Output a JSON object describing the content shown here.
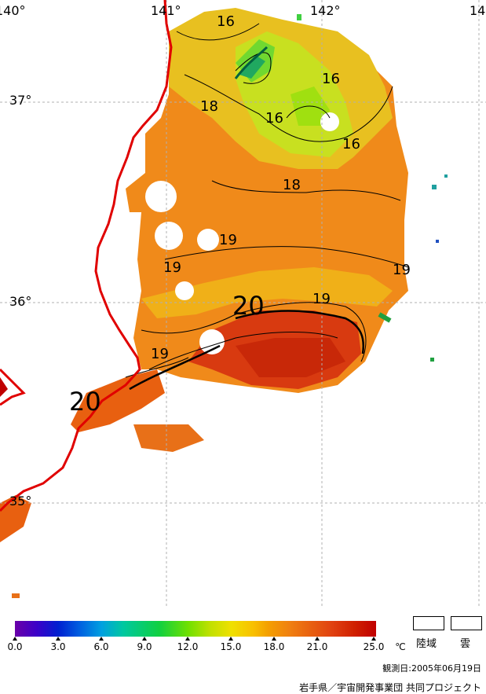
{
  "map": {
    "lon_labels": [
      "140°",
      "141°",
      "142°",
      "14"
    ],
    "lat_labels": [
      "37°",
      "36°",
      "35°"
    ],
    "contour_labels": [
      "16",
      "16",
      "16",
      "16",
      "18",
      "18",
      "19",
      "19",
      "19",
      "19",
      "20",
      "19",
      "20"
    ]
  },
  "colorbar": {
    "ticks": [
      "0.0",
      "3.0",
      "6.0",
      "9.0",
      "12.0",
      "15.0",
      "18.0",
      "21.0",
      "25.0"
    ],
    "unit": "℃"
  },
  "legend": {
    "land": "陸域",
    "cloud": "雲"
  },
  "footer": {
    "date": "観測日:2005年06月19日",
    "credit": "岩手県／宇宙開発事業団 共同プロジェクト"
  },
  "colors": {
    "coast": "#e00000",
    "grid": "#b0b0b0",
    "warm": "#e86010",
    "cool": "#a0e020"
  }
}
